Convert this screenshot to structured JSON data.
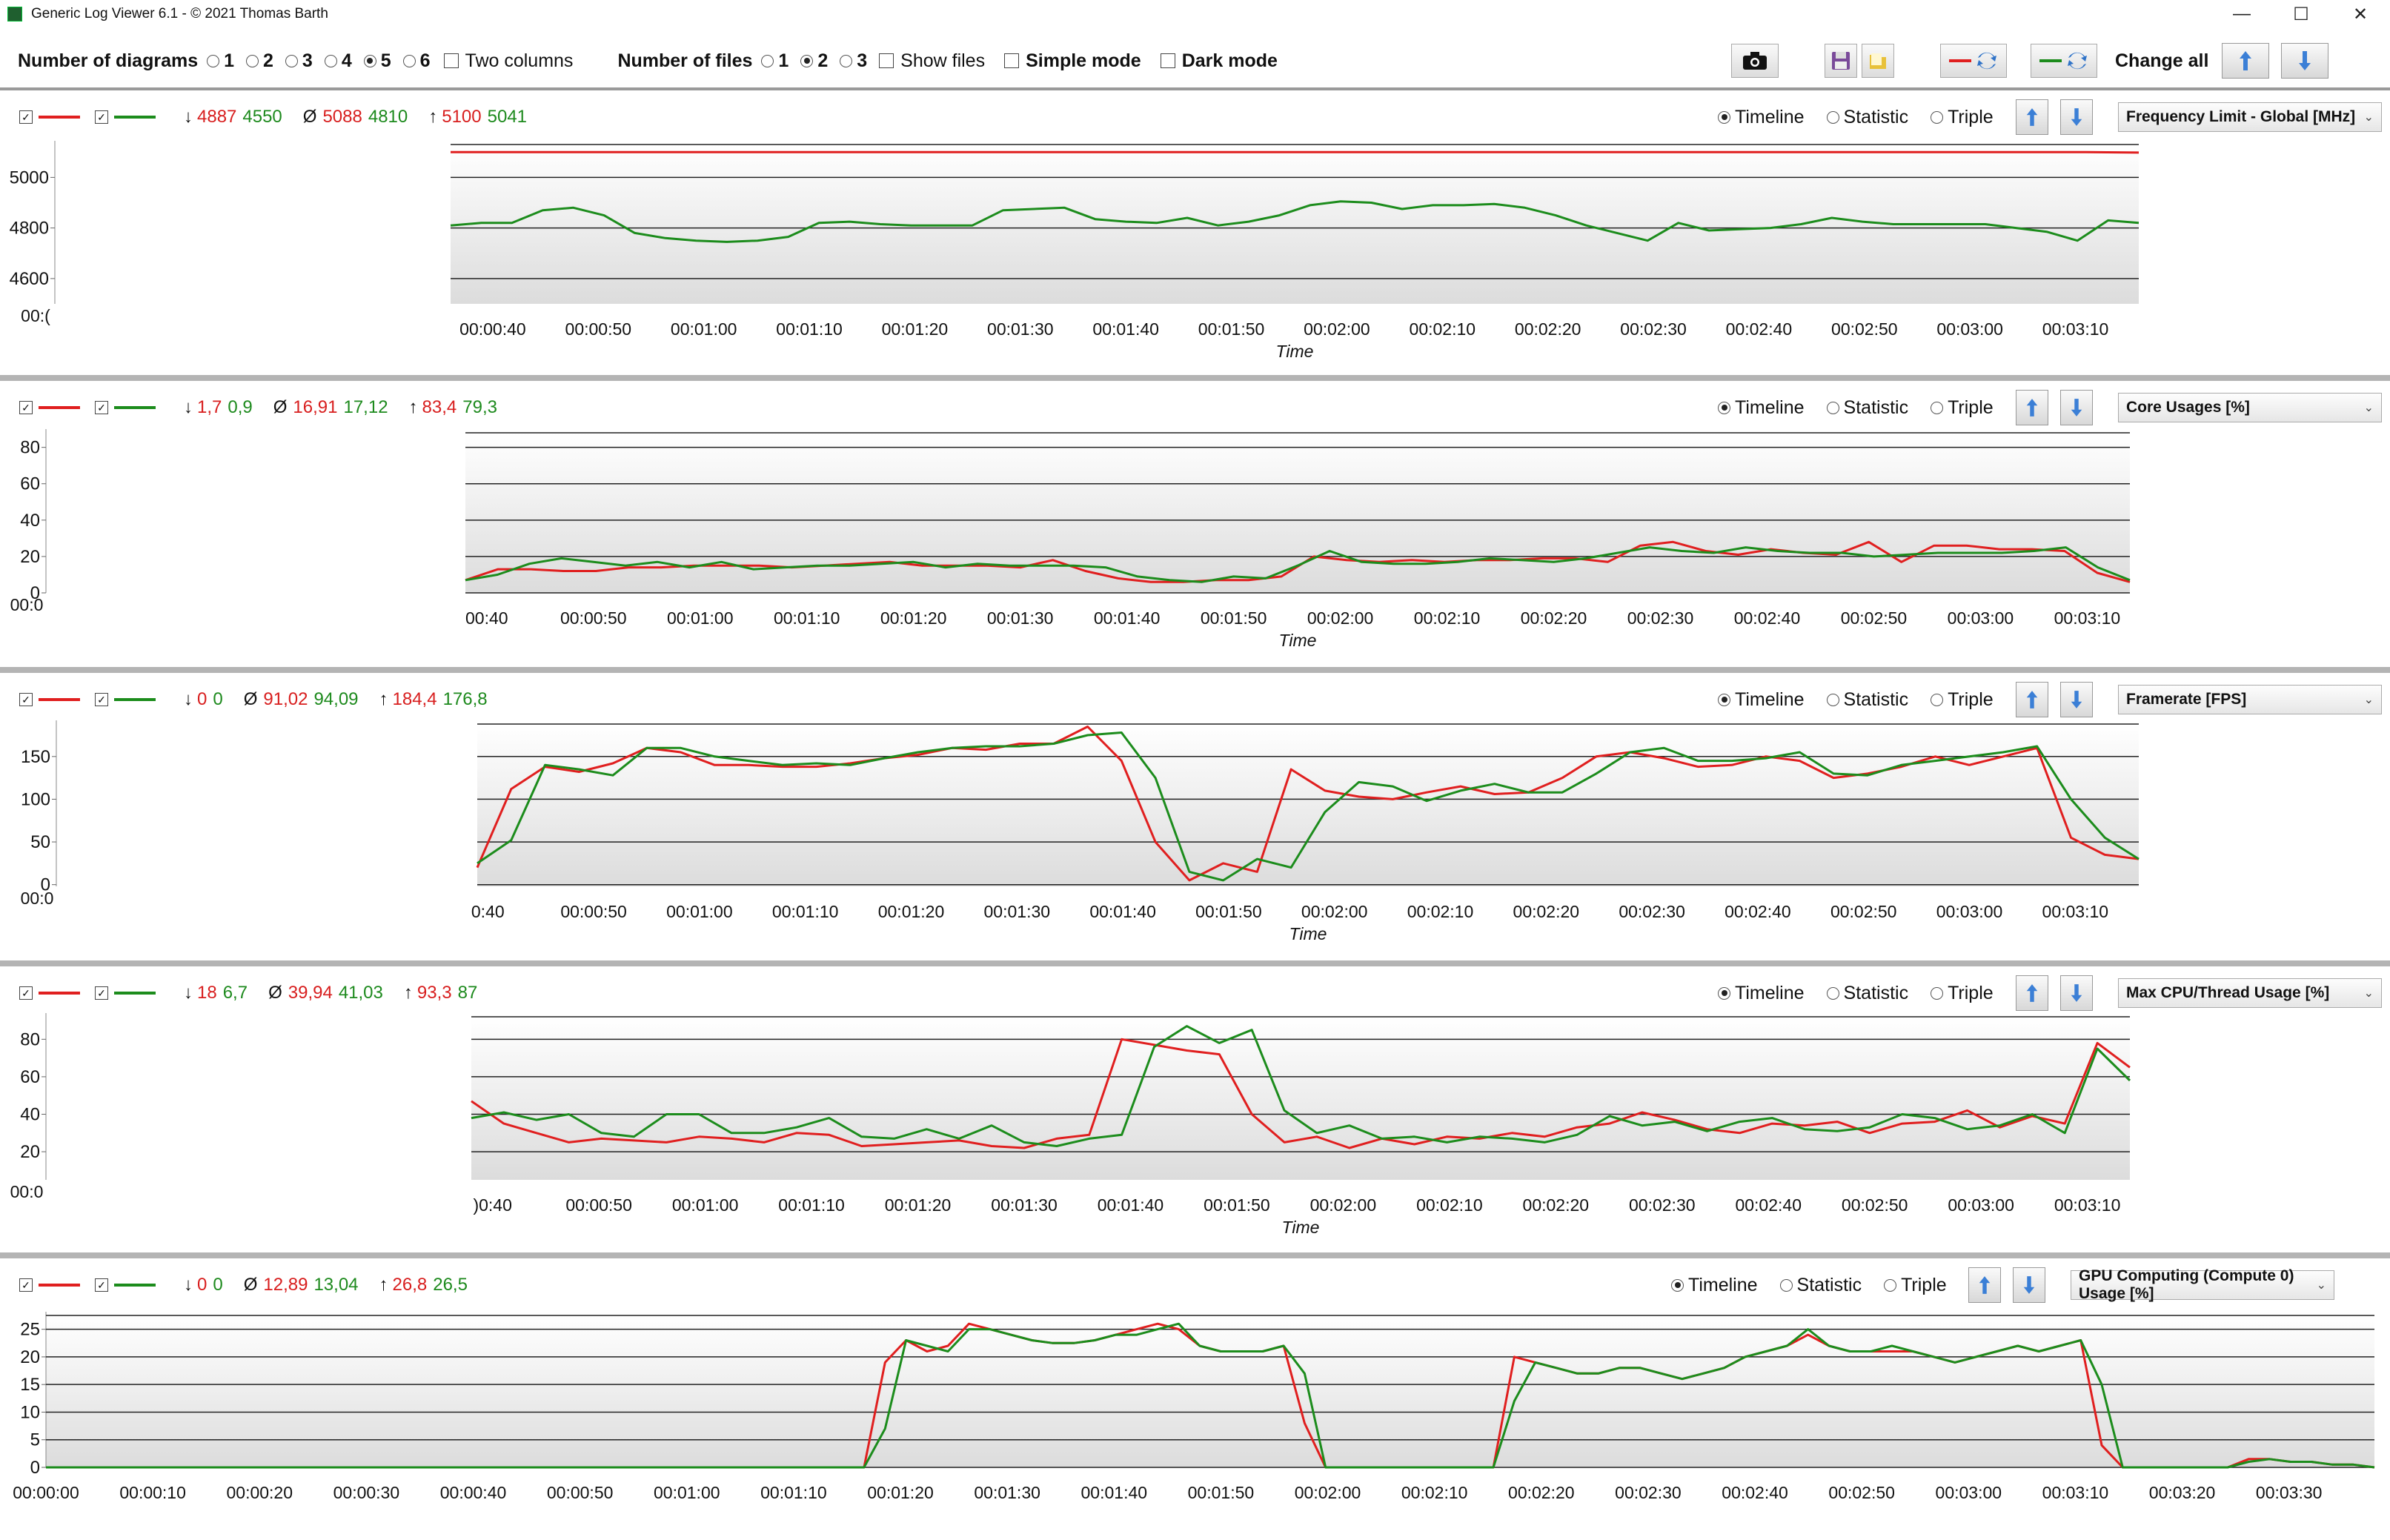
{
  "window": {
    "title": "Generic Log Viewer 6.1 - © 2021 Thomas Barth",
    "controls": {
      "minimize": "—",
      "maximize": "☐",
      "close": "✕"
    }
  },
  "toolbar": {
    "num_diagrams_label": "Number of diagrams",
    "diagram_options": [
      "1",
      "2",
      "3",
      "4",
      "5",
      "6"
    ],
    "diagram_selected": "5",
    "two_columns_label": "Two columns",
    "num_files_label": "Number of files",
    "file_options": [
      "1",
      "2",
      "3"
    ],
    "file_selected": "2",
    "show_files_label": "Show files",
    "simple_mode_label": "Simple mode",
    "dark_mode_label": "Dark mode",
    "change_all_label": "Change all",
    "icons": [
      "camera-icon",
      "save-icon",
      "folder-icon",
      "swap-red-icon",
      "swap-green-icon",
      "arrow-up-icon",
      "arrow-down-icon"
    ]
  },
  "modes": {
    "timeline": "Timeline",
    "statistic": "Statistic",
    "triple": "Triple"
  },
  "colors": {
    "red": "#e01f1f",
    "green": "#1c8c1c"
  },
  "time_axis_label": "Time",
  "panels": [
    {
      "min": "4887 4550",
      "min_red": "4887",
      "min_green": "4550",
      "avg_red": "5088",
      "avg_green": "4810",
      "max_red": "5100",
      "max_green": "5041",
      "select": "Frequency Limit - Global [MHz]",
      "arrow_min": "↓",
      "arrow_avg": "Ø",
      "arrow_max": "↑"
    },
    {
      "min_red": "1,7",
      "min_green": "0,9",
      "avg_red": "16,91",
      "avg_green": "17,12",
      "max_red": "83,4",
      "max_green": "79,3",
      "select": "Core Usages [%]",
      "arrow_min": "↓",
      "arrow_avg": "Ø",
      "arrow_max": "↑"
    },
    {
      "min_red": "0",
      "min_green": "0",
      "avg_red": "91,02",
      "avg_green": "94,09",
      "max_red": "184,4",
      "max_green": "176,8",
      "select": "Framerate [FPS]",
      "arrow_min": "↓",
      "arrow_avg": "Ø",
      "arrow_max": "↑"
    },
    {
      "min_red": "18",
      "min_green": "6,7",
      "avg_red": "39,94",
      "avg_green": "41,03",
      "max_red": "93,3",
      "max_green": "87",
      "select": "Max CPU/Thread Usage [%]",
      "arrow_min": "↓",
      "arrow_avg": "Ø",
      "arrow_max": "↑"
    },
    {
      "min_red": "0",
      "min_green": "0",
      "avg_red": "12,89",
      "avg_green": "13,04",
      "max_red": "26,8",
      "max_green": "26,5",
      "select": "GPU Computing (Compute 0) Usage [%]",
      "arrow_min": "↓",
      "arrow_avg": "Ø",
      "arrow_max": "↑"
    }
  ],
  "chart_data": [
    {
      "type": "line",
      "title": "Frequency Limit - Global [MHz]",
      "xlabel": "Time",
      "yticks": [
        "5000",
        "4800",
        "4600"
      ],
      "ylim": [
        4500,
        5130
      ],
      "x_start_sec": 36,
      "x_end_sec": 196,
      "xticks": [
        "00:00:40",
        "00:00:50",
        "00:01:00",
        "00:01:10",
        "00:01:20",
        "00:01:30",
        "00:01:40",
        "00:01:50",
        "00:02:00",
        "00:02:10",
        "00:02:20",
        "00:02:30",
        "00:02:40",
        "00:02:50",
        "00:03:00",
        "00:03:10"
      ],
      "xtick_secs": [
        40,
        50,
        60,
        70,
        80,
        90,
        100,
        110,
        120,
        130,
        140,
        150,
        160,
        170,
        180,
        190
      ],
      "extra_left_tick": "00:(",
      "series": [
        {
          "color": "red",
          "values": [
            5100,
            5100,
            5100,
            5100,
            5100,
            5100,
            5100,
            5100,
            5100,
            5100,
            5100,
            5100,
            5100,
            5100,
            5100,
            5100,
            5100,
            5100,
            5100,
            5100,
            5100,
            5100,
            5100,
            5100,
            5100,
            5100,
            5100,
            5100,
            5100,
            5100,
            5100,
            5100,
            5098
          ]
        },
        {
          "color": "green",
          "values": [
            4810,
            4820,
            4820,
            4870,
            4880,
            4850,
            4780,
            4760,
            4750,
            4745,
            4750,
            4765,
            4820,
            4825,
            4815,
            4810,
            4810,
            4810,
            4870,
            4875,
            4880,
            4835,
            4825,
            4820,
            4840,
            4810,
            4825,
            4850,
            4890,
            4905,
            4900,
            4875,
            4890,
            4890,
            4895,
            4880,
            4850,
            4810,
            4780,
            4750,
            4820,
            4790,
            4795,
            4800,
            4815,
            4840,
            4825,
            4815,
            4815,
            4815,
            4815,
            4800,
            4785,
            4750,
            4830,
            4820
          ]
        }
      ]
    },
    {
      "type": "line",
      "title": "Core Usages [%]",
      "xlabel": "Time",
      "yticks": [
        "80",
        "60",
        "40",
        "20",
        "0"
      ],
      "ylim": [
        0,
        88
      ],
      "x_start_sec": 38,
      "x_end_sec": 194,
      "xticks": [
        "00:40",
        "00:00:50",
        "00:01:00",
        "00:01:10",
        "00:01:20",
        "00:01:30",
        "00:01:40",
        "00:01:50",
        "00:02:00",
        "00:02:10",
        "00:02:20",
        "00:02:30",
        "00:02:40",
        "00:02:50",
        "00:03:00",
        "00:03:10"
      ],
      "xtick_secs": [
        40,
        50,
        60,
        70,
        80,
        90,
        100,
        110,
        120,
        130,
        140,
        150,
        160,
        170,
        180,
        190
      ],
      "extra_left_tick": "00:0",
      "series": [
        {
          "color": "red",
          "values": [
            7,
            13,
            13,
            12,
            12,
            14,
            14,
            15,
            15,
            15,
            14,
            15,
            16,
            17,
            15,
            15,
            15,
            14,
            18,
            12,
            8,
            6,
            6,
            7,
            7,
            9,
            20,
            18,
            17,
            18,
            17,
            18,
            18,
            19,
            19,
            17,
            26,
            28,
            23,
            21,
            24,
            22,
            21,
            28,
            17,
            26,
            26,
            24,
            24,
            23,
            11,
            6
          ]
        },
        {
          "color": "green",
          "values": [
            7,
            10,
            16,
            19,
            17,
            15,
            17,
            14,
            17,
            13,
            14,
            15,
            15,
            16,
            17,
            14,
            16,
            15,
            15,
            15,
            14,
            9,
            7,
            6,
            9,
            8,
            15,
            23,
            17,
            16,
            16,
            17,
            19,
            18,
            17,
            19,
            22,
            25,
            23,
            22,
            25,
            23,
            22,
            22,
            20,
            21,
            22,
            22,
            22,
            23,
            25,
            14,
            7
          ]
        }
      ]
    },
    {
      "type": "line",
      "title": "Framerate [FPS]",
      "xlabel": "Time",
      "yticks": [
        "150",
        "100",
        "50",
        "0"
      ],
      "ylim": [
        -2,
        188
      ],
      "x_start_sec": 39,
      "x_end_sec": 196,
      "xticks": [
        "0:40",
        "00:00:50",
        "00:01:00",
        "00:01:10",
        "00:01:20",
        "00:01:30",
        "00:01:40",
        "00:01:50",
        "00:02:00",
        "00:02:10",
        "00:02:20",
        "00:02:30",
        "00:02:40",
        "00:02:50",
        "00:03:00",
        "00:03:10"
      ],
      "xtick_secs": [
        40,
        50,
        60,
        70,
        80,
        90,
        100,
        110,
        120,
        130,
        140,
        150,
        160,
        170,
        180,
        190
      ],
      "extra_left_tick": "00:0",
      "series": [
        {
          "color": "red",
          "values": [
            20,
            112,
            138,
            132,
            142,
            160,
            155,
            140,
            140,
            138,
            138,
            142,
            148,
            152,
            160,
            158,
            165,
            165,
            185,
            145,
            50,
            5,
            25,
            15,
            135,
            110,
            103,
            100,
            108,
            115,
            106,
            108,
            125,
            150,
            155,
            148,
            138,
            140,
            150,
            145,
            125,
            130,
            138,
            150,
            140,
            150,
            160,
            55,
            35,
            30
          ]
        },
        {
          "color": "green",
          "values": [
            25,
            52,
            140,
            135,
            128,
            160,
            160,
            150,
            145,
            140,
            142,
            140,
            148,
            155,
            160,
            162,
            162,
            165,
            175,
            178,
            125,
            15,
            5,
            30,
            20,
            85,
            120,
            115,
            98,
            110,
            118,
            108,
            108,
            130,
            155,
            160,
            145,
            145,
            148,
            155,
            130,
            128,
            140,
            145,
            150,
            155,
            162,
            100,
            55,
            30
          ]
        }
      ]
    },
    {
      "type": "line",
      "title": "Max CPU/Thread Usage [%]",
      "xlabel": "Time",
      "yticks": [
        "80",
        "60",
        "40",
        "20"
      ],
      "ylim": [
        5,
        92
      ],
      "x_start_sec": 38,
      "x_end_sec": 194,
      "xticks": [
        ")0:40",
        "00:00:50",
        "00:01:00",
        "00:01:10",
        "00:01:20",
        "00:01:30",
        "00:01:40",
        "00:01:50",
        "00:02:00",
        "00:02:10",
        "00:02:20",
        "00:02:30",
        "00:02:40",
        "00:02:50",
        "00:03:00",
        "00:03:10"
      ],
      "xtick_secs": [
        40,
        50,
        60,
        70,
        80,
        90,
        100,
        110,
        120,
        130,
        140,
        150,
        160,
        170,
        180,
        190
      ],
      "extra_left_tick": "00:0",
      "series": [
        {
          "color": "red",
          "values": [
            47,
            35,
            30,
            25,
            27,
            26,
            25,
            28,
            27,
            25,
            30,
            29,
            23,
            24,
            25,
            26,
            23,
            22,
            27,
            29,
            80,
            77,
            74,
            72,
            40,
            25,
            28,
            22,
            27,
            24,
            28,
            27,
            30,
            28,
            33,
            35,
            41,
            37,
            32,
            30,
            35,
            34,
            36,
            30,
            35,
            36,
            42,
            33,
            39,
            35,
            78,
            65
          ]
        },
        {
          "color": "green",
          "values": [
            38,
            41,
            37,
            40,
            30,
            28,
            40,
            40,
            30,
            30,
            33,
            38,
            28,
            27,
            32,
            27,
            34,
            25,
            23,
            27,
            29,
            76,
            87,
            78,
            85,
            42,
            30,
            34,
            27,
            28,
            25,
            28,
            27,
            25,
            29,
            39,
            34,
            36,
            31,
            36,
            38,
            32,
            31,
            33,
            40,
            38,
            32,
            34,
            40,
            30,
            75,
            58
          ]
        }
      ]
    },
    {
      "type": "line",
      "title": "GPU Computing (Compute 0) Usage [%]",
      "xlabel": "",
      "yticks": [
        "25",
        "20",
        "15",
        "10",
        "5",
        "0"
      ],
      "ylim": [
        0,
        27.5
      ],
      "x_start_sec": 0,
      "x_end_sec": 218,
      "xticks": [
        "00:00:00",
        "00:00:10",
        "00:00:20",
        "00:00:30",
        "00:00:40",
        "00:00:50",
        "00:01:00",
        "00:01:10",
        "00:01:20",
        "00:01:30",
        "00:01:40",
        "00:01:50",
        "00:02:00",
        "00:02:10",
        "00:02:20",
        "00:02:30",
        "00:02:40",
        "00:02:50",
        "00:03:00",
        "00:03:10",
        "00:03:20",
        "00:03:30"
      ],
      "xtick_secs": [
        0,
        10,
        20,
        30,
        40,
        50,
        60,
        70,
        80,
        90,
        100,
        110,
        120,
        130,
        140,
        150,
        160,
        170,
        180,
        190,
        200,
        210
      ],
      "series": [
        {
          "color": "red",
          "values": [
            0,
            0,
            0,
            0,
            0,
            0,
            0,
            0,
            0,
            0,
            0,
            0,
            0,
            0,
            0,
            0,
            0,
            0,
            0,
            0,
            0,
            0,
            0,
            0,
            0,
            0,
            0,
            0,
            0,
            0,
            0,
            0,
            0,
            0,
            0,
            0,
            0,
            0,
            0,
            0,
            19,
            23,
            21,
            22,
            26,
            25,
            24,
            23,
            22.5,
            22.5,
            23,
            24,
            25,
            26,
            25,
            22,
            21,
            21,
            21,
            22,
            8,
            0,
            0,
            0,
            0,
            0,
            0,
            0,
            0,
            0,
            20,
            19,
            18,
            17,
            17,
            18,
            18,
            17,
            16,
            17,
            18,
            20,
            21,
            22,
            24,
            22,
            21,
            21,
            21,
            21,
            20,
            19,
            20,
            21,
            22,
            21,
            22,
            23,
            4,
            0,
            0,
            0,
            0,
            0,
            0,
            1.5,
            1.5,
            1,
            1,
            0.5,
            0.5,
            0
          ]
        },
        {
          "color": "green",
          "values": [
            0,
            0,
            0,
            0,
            0,
            0,
            0,
            0,
            0,
            0,
            0,
            0,
            0,
            0,
            0,
            0,
            0,
            0,
            0,
            0,
            0,
            0,
            0,
            0,
            0,
            0,
            0,
            0,
            0,
            0,
            0,
            0,
            0,
            0,
            0,
            0,
            0,
            0,
            0,
            0,
            7,
            23,
            22,
            21,
            25,
            25,
            24,
            23,
            22.5,
            22.5,
            23,
            24,
            24,
            25,
            26,
            22,
            21,
            21,
            21,
            22,
            17,
            0,
            0,
            0,
            0,
            0,
            0,
            0,
            0,
            0,
            12,
            19,
            18,
            17,
            17,
            18,
            18,
            17,
            16,
            17,
            18,
            20,
            21,
            22,
            25,
            22,
            21,
            21,
            22,
            21,
            20,
            19,
            20,
            21,
            22,
            21,
            22,
            23,
            15,
            0,
            0,
            0,
            0,
            0,
            0,
            1,
            1.5,
            1,
            1,
            0.5,
            0.5,
            0
          ]
        }
      ]
    }
  ]
}
